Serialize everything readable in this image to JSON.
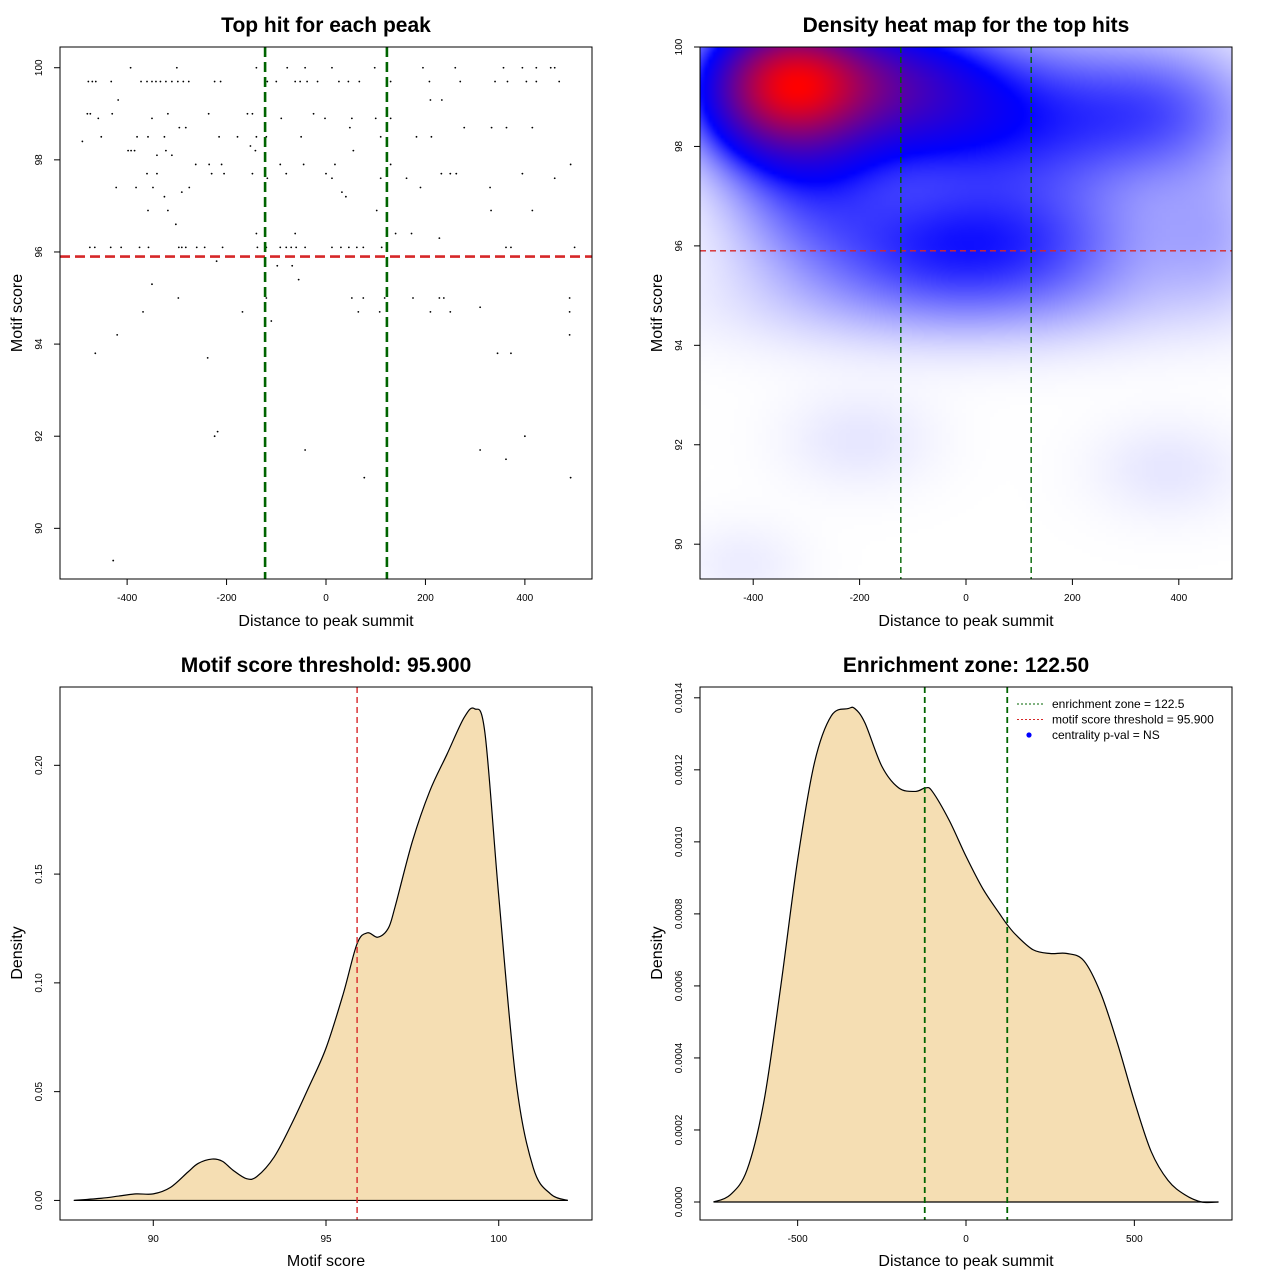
{
  "colors": {
    "threshold_line": "#d62728",
    "zone_line": "#006400",
    "density_fill": "#f5deb3",
    "heat_low": "#ffffff",
    "heat_mid": "#0000ff",
    "heat_high": "#ff0000",
    "points": "#000000"
  },
  "chart_data": [
    {
      "id": "scatter",
      "type": "scatter",
      "title": "Top hit for each peak",
      "xlabel": "Distance to peak summit",
      "ylabel": "Motif score",
      "xlim": [
        -535,
        535
      ],
      "ylim": [
        88.9,
        100.45
      ],
      "xticks": [
        -400,
        -200,
        0,
        200,
        400
      ],
      "yticks": [
        90,
        92,
        94,
        96,
        98,
        100
      ],
      "hlines": [
        {
          "y": 95.9,
          "color": "threshold"
        }
      ],
      "vlines": [
        {
          "x": -122.5,
          "color": "zone"
        },
        {
          "x": 122.5,
          "color": "zone"
        }
      ],
      "points": [
        [
          -478,
          99.7
        ],
        [
          -470,
          99.7
        ],
        [
          -463,
          99.7
        ],
        [
          -432,
          99.7
        ],
        [
          -372,
          99.7
        ],
        [
          -360,
          99.7
        ],
        [
          -350,
          99.7
        ],
        [
          -342,
          99.7
        ],
        [
          -333,
          99.7
        ],
        [
          -322,
          99.7
        ],
        [
          -310,
          99.7
        ],
        [
          -298,
          99.7
        ],
        [
          -287,
          99.7
        ],
        [
          -276,
          99.7
        ],
        [
          -224,
          99.7
        ],
        [
          -212,
          99.7
        ],
        [
          -118,
          99.7
        ],
        [
          -100,
          99.7
        ],
        [
          -62,
          99.7
        ],
        [
          -52,
          99.7
        ],
        [
          -38,
          99.7
        ],
        [
          -17,
          99.7
        ],
        [
          26,
          99.7
        ],
        [
          45,
          99.7
        ],
        [
          67,
          99.7
        ],
        [
          130,
          99.7
        ],
        [
          208,
          99.7
        ],
        [
          270,
          99.7
        ],
        [
          340,
          99.7
        ],
        [
          365,
          99.7
        ],
        [
          403,
          99.7
        ],
        [
          423,
          99.7
        ],
        [
          469,
          99.7
        ],
        [
          -393,
          100.0
        ],
        [
          -300,
          100.0
        ],
        [
          -140,
          100.0
        ],
        [
          -78,
          100.0
        ],
        [
          -42,
          100.0
        ],
        [
          12,
          100.0
        ],
        [
          98,
          100.0
        ],
        [
          195,
          100.0
        ],
        [
          260,
          100.0
        ],
        [
          357,
          100.0
        ],
        [
          395,
          100.0
        ],
        [
          423,
          100.0
        ],
        [
          452,
          100.0
        ],
        [
          460,
          100.0
        ],
        [
          -480,
          99.0
        ],
        [
          -474,
          99.0
        ],
        [
          -458,
          98.9
        ],
        [
          -430,
          99.0
        ],
        [
          -350,
          98.9
        ],
        [
          -318,
          99.0
        ],
        [
          -236,
          99.0
        ],
        [
          -158,
          99.0
        ],
        [
          -148,
          99.0
        ],
        [
          -90,
          98.9
        ],
        [
          -25,
          99.0
        ],
        [
          -2,
          98.9
        ],
        [
          52,
          98.9
        ],
        [
          100,
          98.9
        ],
        [
          130,
          98.9
        ],
        [
          210,
          99.3
        ],
        [
          233,
          99.3
        ],
        [
          -418,
          99.3
        ],
        [
          -152,
          98.3
        ],
        [
          -140,
          98.5
        ],
        [
          -490,
          98.4
        ],
        [
          -452,
          98.5
        ],
        [
          -392,
          98.2
        ],
        [
          -380,
          98.5
        ],
        [
          -358,
          98.5
        ],
        [
          -325,
          98.5
        ],
        [
          -295,
          98.7
        ],
        [
          -282,
          98.7
        ],
        [
          -215,
          98.5
        ],
        [
          -178,
          98.5
        ],
        [
          -120,
          98.5
        ],
        [
          -50,
          98.5
        ],
        [
          48,
          98.7
        ],
        [
          110,
          98.5
        ],
        [
          182,
          98.5
        ],
        [
          212,
          98.5
        ],
        [
          278,
          98.7
        ],
        [
          333,
          98.7
        ],
        [
          363,
          98.7
        ],
        [
          415,
          98.7
        ],
        [
          -398,
          98.2
        ],
        [
          -385,
          98.2
        ],
        [
          -340,
          98.1
        ],
        [
          -322,
          98.2
        ],
        [
          -310,
          98.1
        ],
        [
          -262,
          97.9
        ],
        [
          -235,
          97.9
        ],
        [
          -210,
          97.9
        ],
        [
          -142,
          98.2
        ],
        [
          -92,
          97.9
        ],
        [
          -45,
          97.9
        ],
        [
          18,
          97.9
        ],
        [
          55,
          98.2
        ],
        [
          130,
          97.9
        ],
        [
          492,
          97.9
        ],
        [
          -422,
          97.4
        ],
        [
          -382,
          97.4
        ],
        [
          -360,
          97.7
        ],
        [
          -348,
          97.4
        ],
        [
          -340,
          97.7
        ],
        [
          -325,
          97.2
        ],
        [
          -290,
          97.3
        ],
        [
          -275,
          97.4
        ],
        [
          -230,
          97.7
        ],
        [
          -205,
          97.7
        ],
        [
          -148,
          97.7
        ],
        [
          -118,
          97.6
        ],
        [
          -80,
          97.7
        ],
        [
          0,
          97.7
        ],
        [
          12,
          97.6
        ],
        [
          32,
          97.3
        ],
        [
          40,
          97.2
        ],
        [
          110,
          97.6
        ],
        [
          162,
          97.6
        ],
        [
          190,
          97.4
        ],
        [
          232,
          97.7
        ],
        [
          250,
          97.7
        ],
        [
          262,
          97.7
        ],
        [
          330,
          97.4
        ],
        [
          395,
          97.7
        ],
        [
          460,
          97.6
        ],
        [
          -358,
          96.9
        ],
        [
          -318,
          96.9
        ],
        [
          -302,
          96.6
        ],
        [
          -140,
          96.4
        ],
        [
          -62,
          96.4
        ],
        [
          102,
          96.9
        ],
        [
          140,
          96.4
        ],
        [
          172,
          96.4
        ],
        [
          228,
          96.3
        ],
        [
          332,
          96.9
        ],
        [
          415,
          96.9
        ],
        [
          -475,
          96.1
        ],
        [
          -465,
          96.1
        ],
        [
          -433,
          96.1
        ],
        [
          -412,
          96.1
        ],
        [
          -375,
          96.1
        ],
        [
          -357,
          96.1
        ],
        [
          -296,
          96.1
        ],
        [
          -290,
          96.1
        ],
        [
          -282,
          96.1
        ],
        [
          -260,
          96.1
        ],
        [
          -244,
          96.1
        ],
        [
          -208,
          96.1
        ],
        [
          -138,
          96.1
        ],
        [
          -120,
          96.1
        ],
        [
          -92,
          96.1
        ],
        [
          -80,
          96.1
        ],
        [
          -70,
          96.1
        ],
        [
          -60,
          96.1
        ],
        [
          -42,
          96.1
        ],
        [
          12,
          96.1
        ],
        [
          30,
          96.1
        ],
        [
          46,
          96.1
        ],
        [
          62,
          96.1
        ],
        [
          75,
          96.1
        ],
        [
          112,
          96.1
        ],
        [
          362,
          96.1
        ],
        [
          372,
          96.1
        ],
        [
          500,
          96.1
        ],
        [
          -220,
          95.8
        ],
        [
          -98,
          95.7
        ],
        [
          -68,
          95.7
        ],
        [
          -55,
          95.4
        ],
        [
          -350,
          95.3
        ],
        [
          -297,
          95.0
        ],
        [
          -120,
          95.0
        ],
        [
          -110,
          94.5
        ],
        [
          52,
          95.0
        ],
        [
          75,
          95.0
        ],
        [
          118,
          95.0
        ],
        [
          175,
          95.0
        ],
        [
          228,
          95.0
        ],
        [
          237,
          95.0
        ],
        [
          310,
          94.8
        ],
        [
          490,
          95.0
        ],
        [
          -368,
          94.7
        ],
        [
          -168,
          94.7
        ],
        [
          65,
          94.7
        ],
        [
          108,
          94.7
        ],
        [
          210,
          94.7
        ],
        [
          250,
          94.7
        ],
        [
          490,
          94.7
        ],
        [
          -420,
          94.2
        ],
        [
          490,
          94.2
        ],
        [
          -464,
          93.8
        ],
        [
          -238,
          93.7
        ],
        [
          345,
          93.8
        ],
        [
          372,
          93.8
        ],
        [
          -218,
          92.1
        ],
        [
          -224,
          92.0
        ],
        [
          400,
          92.0
        ],
        [
          -42,
          91.7
        ],
        [
          310,
          91.7
        ],
        [
          362,
          91.5
        ],
        [
          77,
          91.1
        ],
        [
          492,
          91.1
        ],
        [
          -428,
          89.3
        ]
      ]
    },
    {
      "id": "heatmap",
      "type": "heatmap",
      "title": "Density heat map for the top hits",
      "xlabel": "Distance to peak summit",
      "ylabel": "Motif score",
      "xlim": [
        -500,
        500
      ],
      "ylim": [
        89.3,
        100.0
      ],
      "xticks": [
        -400,
        -200,
        0,
        200,
        400
      ],
      "yticks": [
        90,
        92,
        94,
        96,
        98,
        100
      ],
      "hlines": [
        {
          "y": 95.9,
          "color": "threshold"
        }
      ],
      "vlines": [
        {
          "x": -122.5,
          "color": "zone"
        },
        {
          "x": 122.5,
          "color": "zone"
        }
      ],
      "kernels": [
        {
          "x": -330,
          "y": 99.3,
          "sx": 95,
          "sy": 0.9,
          "w": 1.0
        },
        {
          "x": -180,
          "y": 99.4,
          "sx": 130,
          "sy": 0.8,
          "w": 0.4
        },
        {
          "x": -420,
          "y": 99.0,
          "sx": 90,
          "sy": 0.9,
          "w": 0.22
        },
        {
          "x": -300,
          "y": 97.6,
          "sx": 110,
          "sy": 1.2,
          "w": 0.25
        },
        {
          "x": -100,
          "y": 98.8,
          "sx": 140,
          "sy": 1.0,
          "w": 0.28
        },
        {
          "x": 120,
          "y": 98.5,
          "sx": 160,
          "sy": 1.2,
          "w": 0.28
        },
        {
          "x": 380,
          "y": 98.7,
          "sx": 130,
          "sy": 1.0,
          "w": 0.22
        },
        {
          "x": -80,
          "y": 96.0,
          "sx": 170,
          "sy": 0.9,
          "w": 0.25
        },
        {
          "x": 150,
          "y": 96.0,
          "sx": 170,
          "sy": 0.9,
          "w": 0.18
        },
        {
          "x": 470,
          "y": 96.2,
          "sx": 80,
          "sy": 1.0,
          "w": 0.1
        },
        {
          "x": 0,
          "y": 94.8,
          "sx": 300,
          "sy": 0.7,
          "w": 0.08
        },
        {
          "x": -200,
          "y": 92.1,
          "sx": 100,
          "sy": 0.7,
          "w": 0.04
        },
        {
          "x": 380,
          "y": 91.5,
          "sx": 100,
          "sy": 0.7,
          "w": 0.04
        },
        {
          "x": -420,
          "y": 89.6,
          "sx": 80,
          "sy": 0.6,
          "w": 0.03
        }
      ]
    },
    {
      "id": "score_density",
      "type": "area",
      "title": "Motif score threshold: 95.900",
      "xlabel": "Motif score",
      "ylabel": "Density",
      "xlim": [
        87.3,
        102.7
      ],
      "ylim": [
        -0.009,
        0.236
      ],
      "xticks": [
        90,
        95,
        100
      ],
      "yticks": [
        0.0,
        0.05,
        0.1,
        0.15,
        0.2
      ],
      "ytick_labels": [
        "0.00",
        "0.05",
        "0.10",
        "0.15",
        "0.20"
      ],
      "vlines": [
        {
          "x": 95.9,
          "color": "threshold"
        }
      ],
      "x": [
        87.7,
        88.5,
        89.0,
        89.5,
        90.0,
        90.5,
        91.0,
        91.3,
        91.7,
        92.0,
        92.3,
        92.7,
        93.0,
        93.5,
        94.0,
        94.5,
        95.0,
        95.5,
        95.9,
        96.2,
        96.5,
        96.8,
        97.0,
        97.5,
        98.0,
        98.5,
        99.0,
        99.3,
        99.6,
        100.0,
        100.5,
        101.0,
        101.5,
        102.0
      ],
      "values": [
        0.0,
        0.001,
        0.002,
        0.003,
        0.003,
        0.006,
        0.013,
        0.017,
        0.019,
        0.018,
        0.014,
        0.01,
        0.011,
        0.02,
        0.035,
        0.052,
        0.07,
        0.095,
        0.118,
        0.123,
        0.121,
        0.125,
        0.135,
        0.165,
        0.188,
        0.205,
        0.222,
        0.226,
        0.215,
        0.14,
        0.055,
        0.015,
        0.003,
        0.0
      ]
    },
    {
      "id": "distance_density",
      "type": "area",
      "title": "Enrichment zone: 122.50",
      "xlabel": "Distance to peak summit",
      "ylabel": "Density",
      "xlim": [
        -790,
        790
      ],
      "ylim": [
        -5e-05,
        0.00143
      ],
      "xticks": [
        -500,
        0,
        500
      ],
      "yticks": [
        0.0,
        0.0002,
        0.0004,
        0.0006,
        0.0008,
        0.001,
        0.0012,
        0.0014
      ],
      "ytick_labels": [
        "0.0000",
        "0.0002",
        "0.0004",
        "0.0006",
        "0.0008",
        "0.0010",
        "0.0012",
        "0.0014"
      ],
      "vlines": [
        {
          "x": -122.5,
          "color": "zone"
        },
        {
          "x": 122.5,
          "color": "zone"
        }
      ],
      "x": [
        -750,
        -700,
        -650,
        -600,
        -550,
        -500,
        -450,
        -400,
        -350,
        -330,
        -300,
        -250,
        -200,
        -150,
        -120,
        -100,
        -50,
        0,
        50,
        100,
        122.5,
        150,
        200,
        250,
        300,
        350,
        400,
        450,
        500,
        550,
        600,
        650,
        700,
        750
      ],
      "values": [
        0.0,
        2e-05,
        9e-05,
        0.00028,
        0.0006,
        0.00095,
        0.00122,
        0.00135,
        0.00137,
        0.00137,
        0.00133,
        0.00121,
        0.00115,
        0.00114,
        0.00115,
        0.00114,
        0.00106,
        0.00096,
        0.00087,
        0.0008,
        0.00077,
        0.00074,
        0.0007,
        0.00069,
        0.00069,
        0.00067,
        0.00058,
        0.00044,
        0.00028,
        0.00014,
        6e-05,
        2e-05,
        0.0,
        0.0
      ],
      "legend": {
        "position": "top-right",
        "entries": [
          {
            "label": "enrichment zone = 122.5",
            "style": "dotted-line",
            "color": "zone"
          },
          {
            "label": "motif score threshold = 95.900",
            "style": "dotted-line",
            "color": "threshold"
          },
          {
            "label": "centrality p-val = NS",
            "style": "point",
            "color": "#0000ff"
          }
        ]
      }
    }
  ]
}
